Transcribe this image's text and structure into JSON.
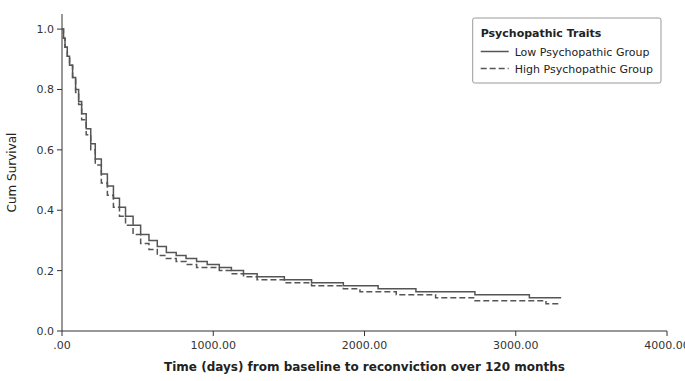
{
  "chart_data": {
    "type": "step",
    "legend_title": "Psychopathic Traits",
    "x_label": "Time (days) from baseline to reconviction over 120 months",
    "y_label": "Cum Survival",
    "xlim": [
      0,
      4000
    ],
    "ylim": [
      0.0,
      1.05
    ],
    "xticks": [
      {
        "value": 0,
        "label": ".00"
      },
      {
        "value": 1000,
        "label": "1000.00"
      },
      {
        "value": 2000,
        "label": "2000.00"
      },
      {
        "value": 3000,
        "label": "3000.00"
      },
      {
        "value": 4000,
        "label": "4000.00"
      }
    ],
    "yticks": [
      {
        "value": 0.0,
        "label": "0.0"
      },
      0.2,
      0.4,
      0.6,
      0.8,
      {
        "value": 1.0,
        "label": "1.0"
      }
    ],
    "grid": false,
    "legend": "upper right",
    "x": [
      0,
      10,
      20,
      35,
      50,
      70,
      90,
      110,
      130,
      160,
      190,
      220,
      260,
      300,
      340,
      380,
      420,
      470,
      520,
      575,
      630,
      690,
      755,
      820,
      890,
      960,
      1040,
      1120,
      1200,
      1290,
      1380,
      1470,
      1560,
      1650,
      1750,
      1860,
      1970,
      2090,
      2210,
      2340,
      2470,
      2600,
      2730,
      2860,
      2980,
      3090,
      3200,
      3300
    ],
    "series": [
      {
        "name": "Low Psychopathic Group",
        "color": "#555555",
        "line_style": "solid",
        "values": [
          1.0,
          0.97,
          0.94,
          0.91,
          0.88,
          0.84,
          0.8,
          0.76,
          0.72,
          0.67,
          0.62,
          0.57,
          0.52,
          0.48,
          0.44,
          0.41,
          0.38,
          0.35,
          0.32,
          0.3,
          0.28,
          0.26,
          0.25,
          0.24,
          0.23,
          0.22,
          0.21,
          0.2,
          0.19,
          0.18,
          0.18,
          0.17,
          0.17,
          0.16,
          0.16,
          0.15,
          0.15,
          0.14,
          0.14,
          0.13,
          0.13,
          0.13,
          0.12,
          0.12,
          0.12,
          0.11,
          0.11,
          0.11
        ]
      },
      {
        "name": "High Psychopathic Group",
        "color": "#555555",
        "line_style": "dashed",
        "values": [
          1.0,
          0.97,
          0.94,
          0.91,
          0.88,
          0.84,
          0.79,
          0.75,
          0.7,
          0.65,
          0.6,
          0.55,
          0.49,
          0.45,
          0.41,
          0.38,
          0.35,
          0.32,
          0.29,
          0.27,
          0.25,
          0.24,
          0.23,
          0.22,
          0.21,
          0.21,
          0.2,
          0.19,
          0.18,
          0.17,
          0.17,
          0.16,
          0.16,
          0.15,
          0.15,
          0.14,
          0.13,
          0.13,
          0.12,
          0.12,
          0.11,
          0.11,
          0.1,
          0.1,
          0.1,
          0.1,
          0.09,
          0.09
        ]
      }
    ]
  }
}
